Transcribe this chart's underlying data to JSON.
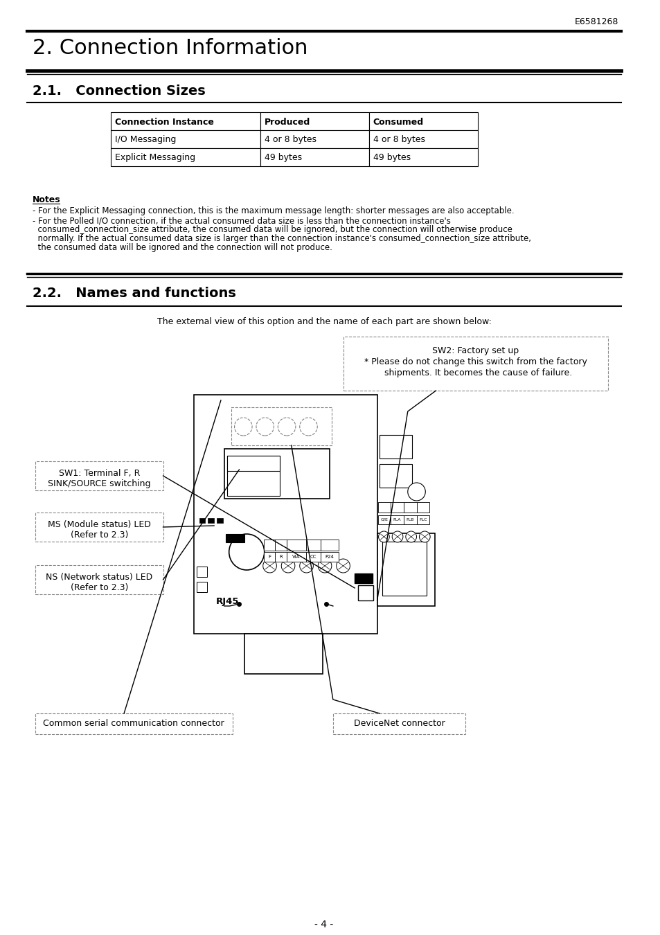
{
  "page_title": "2. Connection Information",
  "section1_title": "2.1.   Connection Sizes",
  "section2_title": "2.2.   Names and functions",
  "doc_number": "E6581268",
  "page_number": "- 4 -",
  "table_headers": [
    "Connection Instance",
    "Produced",
    "Consumed"
  ],
  "table_rows": [
    [
      "I/O Messaging",
      "4 or 8 bytes",
      "4 or 8 bytes"
    ],
    [
      "Explicit Messaging",
      "49 bytes",
      "49 bytes"
    ]
  ],
  "notes_title": "Notes",
  "note1": "- For the Explicit Messaging connection, this is the maximum message length: shorter messages are also acceptable.",
  "note2_lines": [
    "- For the Polled I/O connection, if the actual consumed data size is less than the connection instance's",
    "  consumed_connection_size attribute, the consumed data will be ignored, but the connection will otherwise produce",
    "  normally. If the actual consumed data size is larger than the connection instance's consumed_connection_size attribute,",
    "  the consumed data will be ignored and the connection will not produce."
  ],
  "section2_subtitle": "The external view of this option and the name of each part are shown below:",
  "sw2_line1": "SW2: Factory set up",
  "sw2_line2": "* Please do not change this switch from the factory",
  "sw2_line3": "  shipments. It becomes the cause of failure.",
  "sw1_line1": "SW1: Terminal F, R",
  "sw1_line2": "SINK/SOURCE switching",
  "ms_line1": "MS (Module status) LED",
  "ms_line2": "(Refer to 2.3)",
  "ns_line1": "NS (Network status) LED",
  "ns_line2": "(Refer to 2.3)",
  "rj45_label": "RJ45",
  "common_connector_label": "Common serial communication connector",
  "devicenet_label": "DeviceNet connector",
  "term_labels": [
    "F",
    "R",
    "VIA",
    "CC",
    "P24"
  ],
  "right_labels": [
    "G/E",
    "FLA",
    "FLB",
    "FLC"
  ],
  "bg_color": "#ffffff",
  "text_color": "#000000"
}
